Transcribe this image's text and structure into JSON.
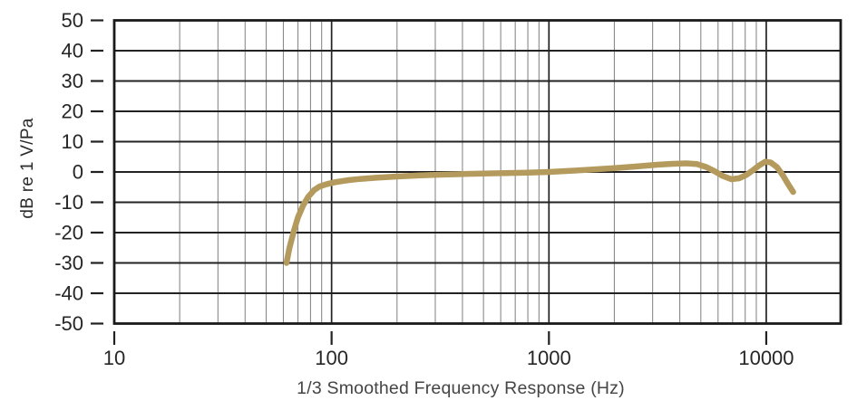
{
  "chart_data": {
    "type": "line",
    "title": "",
    "xlabel": "1/3 Smoothed Frequency Response (Hz)",
    "ylabel": "dB re 1 V/Pa",
    "x_scale": "log",
    "x_range": [
      10,
      22000
    ],
    "y_range": [
      -50,
      50
    ],
    "grid": "on",
    "legend": "none",
    "x_major_ticks": [
      10,
      100,
      1000,
      10000
    ],
    "x_tick_labels": [
      "10",
      "100",
      "1000",
      "10000"
    ],
    "x_minor_decades": [
      10,
      100,
      1000
    ],
    "y_ticks": [
      50,
      40,
      30,
      20,
      10,
      0,
      -10,
      -20,
      -30,
      -40,
      -50
    ],
    "y_tick_labels": [
      "50",
      "40",
      "30",
      "20",
      "10",
      "0",
      "-10",
      "-20",
      "-30",
      "-40",
      "-50"
    ],
    "colors": {
      "curve": "#b49a5c",
      "grid_major": "#222222",
      "grid_minor": "#8a8a8a",
      "border": "#1a1a1a",
      "tick": "#222222"
    },
    "series": [
      {
        "name": "frequency-response",
        "points_hz_db": [
          [
            62,
            -30
          ],
          [
            64,
            -25
          ],
          [
            67,
            -19.5
          ],
          [
            70,
            -15
          ],
          [
            74,
            -11
          ],
          [
            78,
            -8.2
          ],
          [
            83,
            -6
          ],
          [
            88,
            -4.8
          ],
          [
            95,
            -4
          ],
          [
            105,
            -3.3
          ],
          [
            120,
            -2.7
          ],
          [
            135,
            -2.3
          ],
          [
            160,
            -1.9
          ],
          [
            200,
            -1.5
          ],
          [
            250,
            -1.15
          ],
          [
            315,
            -0.9
          ],
          [
            400,
            -0.7
          ],
          [
            500,
            -0.55
          ],
          [
            630,
            -0.4
          ],
          [
            800,
            -0.2
          ],
          [
            1000,
            0
          ],
          [
            1250,
            0.35
          ],
          [
            1600,
            0.8
          ],
          [
            2000,
            1.25
          ],
          [
            2500,
            1.8
          ],
          [
            3150,
            2.4
          ],
          [
            3700,
            2.7
          ],
          [
            4300,
            2.85
          ],
          [
            4800,
            2.6
          ],
          [
            5300,
            1.6
          ],
          [
            5800,
            0.2
          ],
          [
            6300,
            -1.3
          ],
          [
            6900,
            -2.4
          ],
          [
            7500,
            -2.1
          ],
          [
            8100,
            -1.0
          ],
          [
            8700,
            0.6
          ],
          [
            9300,
            2.2
          ],
          [
            9900,
            3.4
          ],
          [
            10500,
            3.1
          ],
          [
            11200,
            1.6
          ],
          [
            11900,
            -1.0
          ],
          [
            12600,
            -4.0
          ],
          [
            13300,
            -6.6
          ]
        ]
      }
    ]
  }
}
